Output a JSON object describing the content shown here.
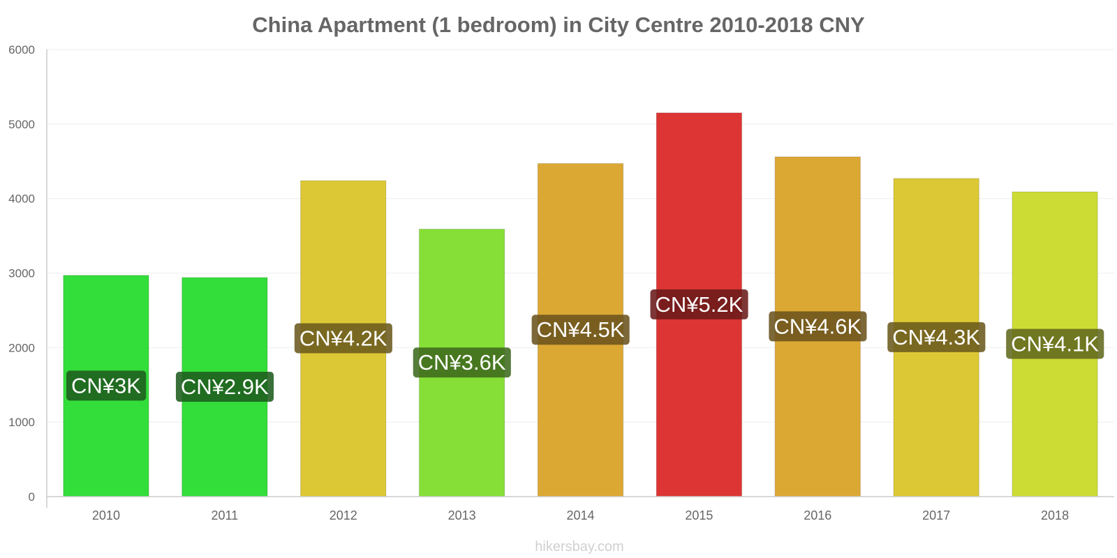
{
  "chart_data": {
    "type": "bar",
    "title": "China Apartment (1 bedroom) in City Centre 2010-2018 CNY",
    "xlabel": "",
    "ylabel": "",
    "ylim": [
      0,
      6000
    ],
    "yticks": [
      0,
      1000,
      2000,
      3000,
      4000,
      5000,
      6000
    ],
    "grid": true,
    "categories": [
      "2010",
      "2011",
      "2012",
      "2013",
      "2014",
      "2015",
      "2016",
      "2017",
      "2018"
    ],
    "values": [
      2970,
      2940,
      4240,
      3590,
      4470,
      5150,
      4560,
      4270,
      4090
    ],
    "data_labels": [
      "CN¥3K",
      "CN¥2.9K",
      "CN¥4.2K",
      "CN¥3.6K",
      "CN¥4.5K",
      "CN¥5.2K",
      "CN¥4.6K",
      "CN¥4.3K",
      "CN¥4.1K"
    ],
    "bar_colors": [
      "#33dd3a",
      "#33dd3a",
      "#dcc834",
      "#86df36",
      "#dca834",
      "#dc3534",
      "#dca834",
      "#dcc834",
      "#ccdc34"
    ],
    "label_bg_colors": [
      "#1e5c1e",
      "#1e5c1e",
      "#6b5a1e",
      "#3f6a1e",
      "#6b531e",
      "#6b1a1a",
      "#6b531e",
      "#6b5a1e",
      "#62691e"
    ]
  },
  "watermark": "hikersbay.com"
}
